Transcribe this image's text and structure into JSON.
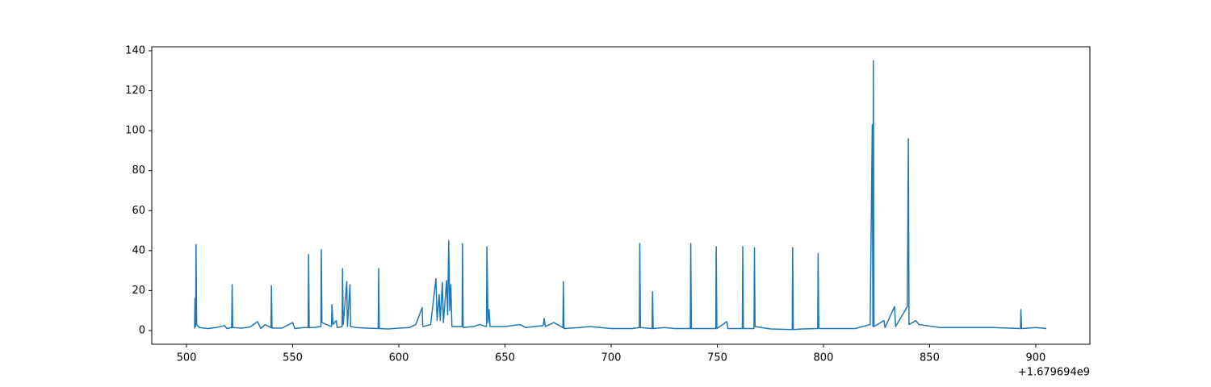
{
  "chart_data": {
    "type": "line",
    "x_offset_label": "+1.679694e9",
    "x": [
      503.8,
      504,
      504.3,
      504.5,
      504.8,
      506,
      510,
      514,
      518,
      519,
      521.3,
      521.5,
      521.8,
      526,
      530,
      533.5,
      535,
      537,
      539.8,
      540,
      540.3,
      545,
      550,
      551,
      555,
      557.3,
      557.5,
      557.8,
      560,
      563.3,
      563.5,
      563.8,
      566,
      568.3,
      568.5,
      569,
      570.5,
      571,
      573.3,
      573.5,
      573.8,
      575.5,
      575.8,
      577,
      577.3,
      580,
      585,
      590.3,
      590.5,
      590.8,
      595,
      600,
      605,
      608,
      611,
      611.3,
      615,
      617.5,
      618,
      619,
      619.5,
      620.5,
      621,
      622.5,
      623,
      623.5,
      624,
      624.5,
      625,
      629.8,
      630,
      630.3,
      635,
      638,
      641.3,
      641.5,
      642,
      642.5,
      643,
      650,
      657,
      660,
      668,
      668.5,
      669,
      673,
      677.3,
      677.5,
      677.8,
      685,
      690,
      700,
      710,
      713.3,
      713.5,
      713.8,
      719.3,
      719.5,
      719.8,
      725,
      730,
      737.3,
      737.5,
      737.8,
      745,
      749.3,
      749.5,
      749.8,
      754.5,
      755,
      761.8,
      762,
      762.3,
      767.3,
      767.5,
      767.8,
      775,
      785.3,
      785.5,
      785.8,
      790,
      797.3,
      797.5,
      797.8,
      805,
      815,
      822,
      823,
      823.3,
      823.5,
      823.8,
      828.5,
      829,
      833.5,
      834,
      839.5,
      840,
      840.3,
      843.5,
      845,
      855,
      870,
      880,
      892.8,
      893,
      893.3,
      900,
      905
    ],
    "series": [
      {
        "color": "#1f77b4",
        "values": [
          1,
          16,
          2,
          43,
          3,
          1.5,
          1,
          1.5,
          2.5,
          1,
          1.5,
          23,
          1.5,
          1.2,
          1.8,
          4.5,
          1,
          3,
          1.5,
          22.5,
          1.2,
          1.2,
          4,
          1,
          1.5,
          1.5,
          38,
          1.5,
          1.5,
          2,
          40.5,
          4,
          3,
          2,
          13,
          3,
          5,
          1.5,
          2,
          31,
          3,
          24.5,
          2,
          23,
          2,
          1.5,
          1.2,
          1,
          31,
          1,
          0.8,
          1.2,
          1.5,
          3,
          11.5,
          2,
          3,
          26,
          5,
          18,
          5,
          24,
          4,
          25,
          8,
          45,
          10,
          23,
          2,
          2,
          43.5,
          1.5,
          2,
          3,
          2,
          42,
          4,
          10.5,
          2,
          2,
          3,
          1.5,
          2.5,
          6,
          2,
          4,
          1.5,
          24.5,
          1,
          1.5,
          2,
          1,
          1,
          1.5,
          43.5,
          1.5,
          1,
          19.5,
          1,
          1.5,
          1,
          1,
          43.5,
          1,
          1,
          1,
          42,
          1,
          4.5,
          1,
          1,
          42,
          1,
          1,
          41.5,
          2,
          0.8,
          0.5,
          41.5,
          0.5,
          0.8,
          1,
          38.5,
          1,
          1,
          1,
          3,
          103,
          2,
          135,
          2,
          5,
          1.5,
          12,
          2,
          12,
          96,
          3,
          5,
          3,
          1.5,
          1.5,
          1.5,
          1,
          10.5,
          1,
          1.5,
          1
        ]
      }
    ],
    "xlim": [
      483.65,
      925.5
    ],
    "ylim": [
      -6.86,
      142.0
    ],
    "xticks": [
      500,
      550,
      600,
      650,
      700,
      750,
      800,
      850,
      900
    ],
    "yticks": [
      0,
      20,
      40,
      60,
      80,
      100,
      120,
      140
    ]
  }
}
